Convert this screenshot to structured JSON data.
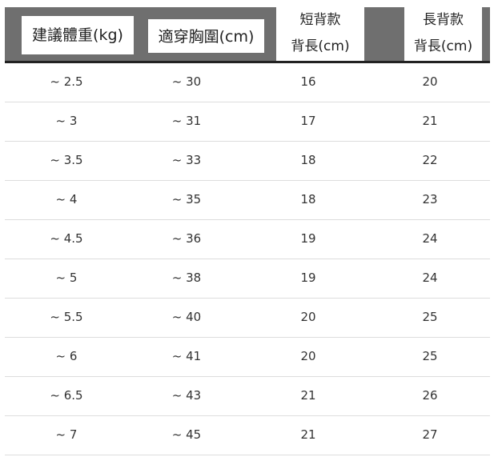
{
  "headers": [
    "建議體重(kg)",
    "適穿胸圍(cm)",
    [
      "短背款",
      "背長(cm)"
    ],
    [
      "長背款",
      "背長(cm)"
    ]
  ],
  "rows": [
    [
      "~ 2.5",
      "~ 30",
      "16",
      "20"
    ],
    [
      "~ 3",
      "~ 31",
      "17",
      "21"
    ],
    [
      "~ 3.5",
      "~ 33",
      "18",
      "22"
    ],
    [
      "~ 4",
      "~ 35",
      "18",
      "23"
    ],
    [
      "~ 4.5",
      "~ 36",
      "19",
      "24"
    ],
    [
      "~ 5",
      "~ 38",
      "19",
      "24"
    ],
    [
      "~ 5.5",
      "~ 40",
      "20",
      "25"
    ],
    [
      "~ 6",
      "~ 41",
      "20",
      "25"
    ],
    [
      "~ 6.5",
      "~ 43",
      "21",
      "26"
    ],
    [
      "~ 7",
      "~ 45",
      "21",
      "27"
    ]
  ]
}
